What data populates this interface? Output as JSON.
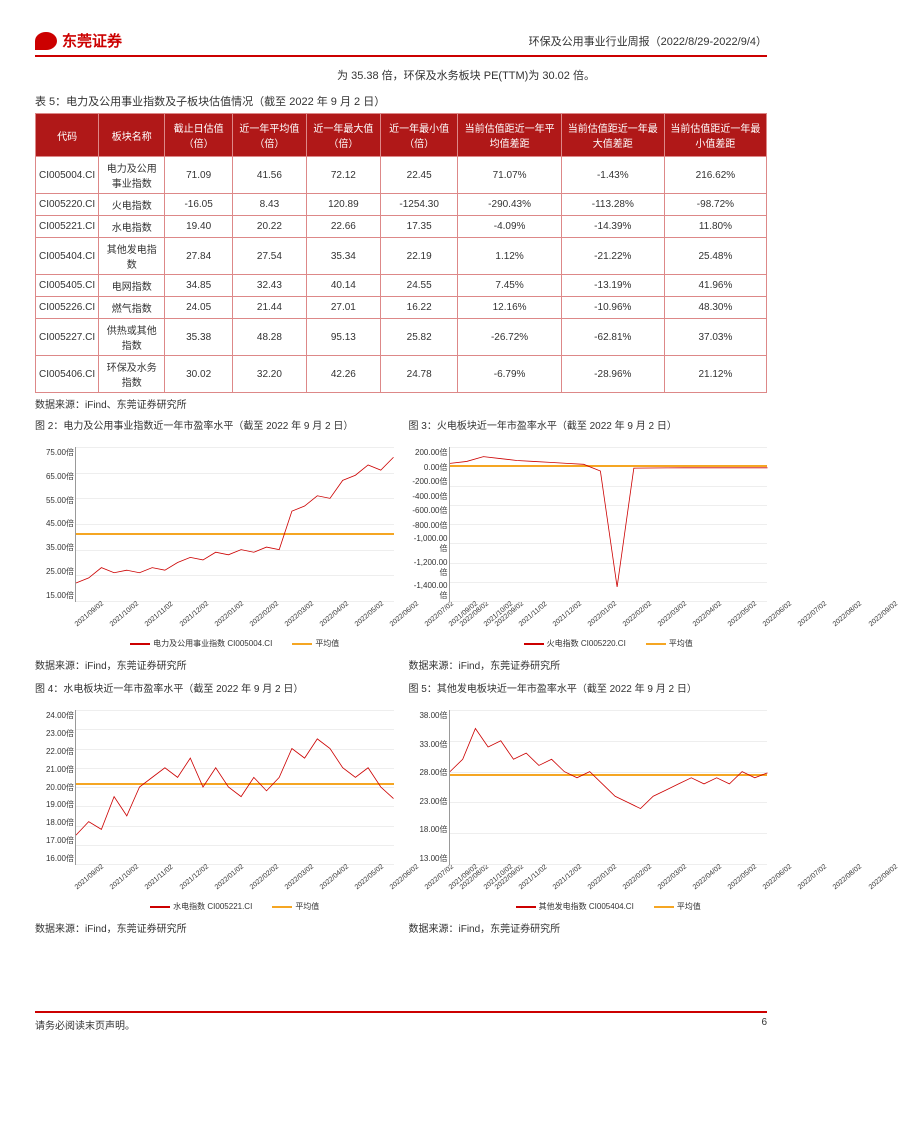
{
  "header": {
    "company": "东莞证券",
    "report": "环保及公用事业行业周报（2022/8/29-2022/9/4）"
  },
  "intro": "为 35.38 倍，环保及水务板块 PE(TTM)为 30.02 倍。",
  "table": {
    "title": "表 5：电力及公用事业指数及子板块估值情况（截至 2022 年 9 月 2 日）",
    "columns": [
      "代码",
      "板块名称",
      "截止日估值（倍）",
      "近一年平均值（倍）",
      "近一年最大值（倍）",
      "近一年最小值（倍）",
      "当前估值距近一年平均值差距",
      "当前估值距近一年最大值差距",
      "当前估值距近一年最小值差距"
    ],
    "rows": [
      [
        "CI005004.CI",
        "电力及公用事业指数",
        "71.09",
        "41.56",
        "72.12",
        "22.45",
        "71.07%",
        "-1.43%",
        "216.62%"
      ],
      [
        "CI005220.CI",
        "火电指数",
        "-16.05",
        "8.43",
        "120.89",
        "-1254.30",
        "-290.43%",
        "-113.28%",
        "-98.72%"
      ],
      [
        "CI005221.CI",
        "水电指数",
        "19.40",
        "20.22",
        "22.66",
        "17.35",
        "-4.09%",
        "-14.39%",
        "11.80%"
      ],
      [
        "CI005404.CI",
        "其他发电指数",
        "27.84",
        "27.54",
        "35.34",
        "22.19",
        "1.12%",
        "-21.22%",
        "25.48%"
      ],
      [
        "CI005405.CI",
        "电网指数",
        "34.85",
        "32.43",
        "40.14",
        "24.55",
        "7.45%",
        "-13.19%",
        "41.96%"
      ],
      [
        "CI005226.CI",
        "燃气指数",
        "24.05",
        "21.44",
        "27.01",
        "16.22",
        "12.16%",
        "-10.96%",
        "48.30%"
      ],
      [
        "CI005227.CI",
        "供热或其他指数",
        "35.38",
        "48.28",
        "95.13",
        "25.82",
        "-26.72%",
        "-62.81%",
        "37.03%"
      ],
      [
        "CI005406.CI",
        "环保及水务指数",
        "30.02",
        "32.20",
        "42.26",
        "24.78",
        "-6.79%",
        "-28.96%",
        "21.12%"
      ]
    ],
    "source": "数据来源：iFind、东莞证券研究所"
  },
  "charts": [
    {
      "id": "c2",
      "title": "图 2：电力及公用事业指数近一年市盈率水平（截至 2022 年 9 月 2 日）",
      "type": "line",
      "series_name": "电力及公用事业指数 CI005004.CI",
      "series_color": "#c00",
      "avg_color": "#f5a623",
      "ylim": [
        15,
        75
      ],
      "yticks": [
        "15.00倍",
        "25.00倍",
        "35.00倍",
        "45.00倍",
        "55.00倍",
        "65.00倍",
        "75.00倍"
      ],
      "xticks": [
        "2021/09/02",
        "2021/10/02",
        "2021/11/02",
        "2021/12/02",
        "2022/01/02",
        "2022/02/02",
        "2022/03/02",
        "2022/04/02",
        "2022/05/02",
        "2022/06/02",
        "2022/07/02",
        "2022/08/02",
        "2022/09/02"
      ],
      "avg": 41.56,
      "values": [
        22,
        24,
        28,
        26,
        27,
        26,
        28,
        27,
        30,
        32,
        31,
        34,
        33,
        35,
        34,
        36,
        35,
        50,
        52,
        56,
        55,
        62,
        64,
        68,
        66,
        71
      ],
      "source": "数据来源：iFind，东莞证券研究所"
    },
    {
      "id": "c3",
      "title": "图 3：火电板块近一年市盈率水平（截至 2022 年 9 月 2 日）",
      "type": "line",
      "series_name": "火电指数 CI005220.CI",
      "series_color": "#c00",
      "avg_color": "#f5a623",
      "ylim": [
        -1400,
        200
      ],
      "yticks": [
        "-1,400.00倍",
        "-1,200.00倍",
        "-1,000.00倍",
        "-800.00倍",
        "-600.00倍",
        "-400.00倍",
        "-200.00倍",
        "0.00倍",
        "200.00倍"
      ],
      "xticks": [
        "2021/09/02",
        "2021/10/02",
        "2021/11/02",
        "2021/12/02",
        "2022/01/02",
        "2022/02/02",
        "2022/03/02",
        "2022/04/02",
        "2022/05/02",
        "2022/06/02",
        "2022/07/02",
        "2022/08/02",
        "2022/09/02"
      ],
      "avg": 8.43,
      "values": [
        30,
        50,
        100,
        80,
        60,
        50,
        40,
        30,
        20,
        -50,
        -1254,
        -20,
        -18,
        -17,
        -16,
        -16,
        -16,
        -16,
        -16,
        -16
      ],
      "source": "数据来源：iFind，东莞证券研究所"
    },
    {
      "id": "c4",
      "title": "图 4：水电板块近一年市盈率水平（截至 2022 年 9 月 2 日）",
      "type": "line",
      "series_name": "水电指数 CI005221.CI",
      "series_color": "#c00",
      "avg_color": "#f5a623",
      "ylim": [
        16,
        24
      ],
      "yticks": [
        "16.00倍",
        "17.00倍",
        "18.00倍",
        "19.00倍",
        "20.00倍",
        "21.00倍",
        "22.00倍",
        "23.00倍",
        "24.00倍"
      ],
      "xticks": [
        "2021/09/02",
        "2021/10/02",
        "2021/11/02",
        "2021/12/02",
        "2022/01/02",
        "2022/02/02",
        "2022/03/02",
        "2022/04/02",
        "2022/05/02",
        "2022/06/02",
        "2022/07/02",
        "2022/08/02",
        "2022/09/02"
      ],
      "avg": 20.22,
      "values": [
        17.5,
        18.2,
        17.8,
        19.5,
        18.5,
        20,
        20.5,
        21,
        20.5,
        21.5,
        20,
        21,
        20,
        19.5,
        20.5,
        19.8,
        20.5,
        22,
        21.5,
        22.5,
        22,
        21,
        20.5,
        21,
        20,
        19.4
      ],
      "source": "数据来源：iFind，东莞证券研究所"
    },
    {
      "id": "c5",
      "title": "图 5：其他发电板块近一年市盈率水平（截至 2022 年 9 月 2 日）",
      "type": "line",
      "series_name": "其他发电指数 CI005404.CI",
      "series_color": "#c00",
      "avg_color": "#f5a623",
      "ylim": [
        13,
        38
      ],
      "yticks": [
        "13.00倍",
        "18.00倍",
        "23.00倍",
        "28.00倍",
        "33.00倍",
        "38.00倍"
      ],
      "xticks": [
        "2021/09/02",
        "2021/10/02",
        "2021/11/02",
        "2021/12/02",
        "2022/01/02",
        "2022/02/02",
        "2022/03/02",
        "2022/04/02",
        "2022/05/02",
        "2022/06/02",
        "2022/07/02",
        "2022/08/02",
        "2022/09/02"
      ],
      "avg": 27.54,
      "values": [
        28,
        30,
        35,
        32,
        33,
        30,
        31,
        29,
        30,
        28,
        27,
        28,
        26,
        24,
        23,
        22,
        24,
        25,
        26,
        27,
        26,
        27,
        26,
        28,
        27,
        27.8
      ],
      "source": "数据来源：iFind，东莞证券研究所"
    }
  ],
  "avg_label": "平均值",
  "footer": {
    "disclaimer": "请务必阅读末页声明。",
    "page": "6"
  }
}
